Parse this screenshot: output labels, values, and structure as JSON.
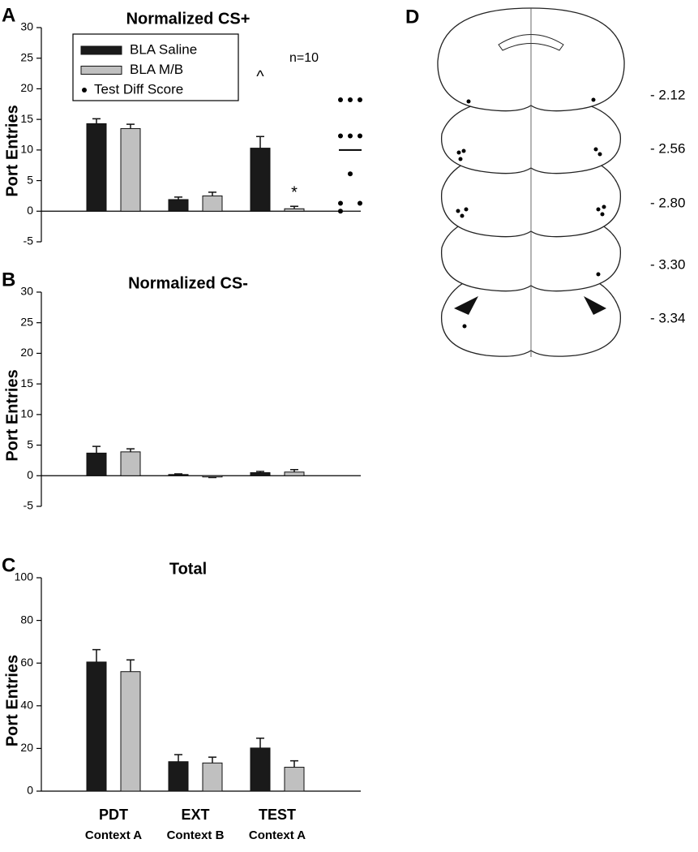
{
  "chart_data": [
    {
      "type": "bar",
      "panel": "A",
      "title": "Normalized CS+",
      "ylabel": "Port Entries",
      "ylim": [
        -5,
        30
      ],
      "yticks": [
        -5,
        0,
        5,
        10,
        15,
        20,
        25,
        30
      ],
      "legend": "upper left",
      "annotations": [
        "^",
        "*",
        "n=10"
      ],
      "series": [
        {
          "name": "BLA Saline",
          "color": "#1a1a1a",
          "values": [
            14.3,
            1.9,
            10.3
          ],
          "errors": [
            0.8,
            0.4,
            1.9
          ]
        },
        {
          "name": "BLA M/B",
          "color": "#c0c0c0",
          "values": [
            13.5,
            2.5,
            0.4
          ],
          "errors": [
            0.7,
            0.6,
            0.4
          ]
        },
        {
          "name": "Test Diff Score",
          "color": "#000000",
          "marker": "dot",
          "values": [
            18.2,
            18.2,
            18.2,
            12.3,
            12.3,
            12.3,
            6.1,
            1.3,
            1.3,
            0
          ],
          "mean": 10
        }
      ]
    },
    {
      "type": "bar",
      "panel": "B",
      "title": "Normalized CS-",
      "ylabel": "Port Entries",
      "ylim": [
        -5,
        30
      ],
      "yticks": [
        -5,
        0,
        5,
        10,
        15,
        20,
        25,
        30
      ],
      "series": [
        {
          "name": "BLA Saline",
          "color": "#1a1a1a",
          "values": [
            3.7,
            0.2,
            0.5
          ],
          "errors": [
            1.1,
            0.1,
            0.2
          ]
        },
        {
          "name": "BLA M/B",
          "color": "#c0c0c0",
          "values": [
            3.9,
            -0.2,
            0.6
          ],
          "errors": [
            0.5,
            0.1,
            0.4
          ]
        }
      ]
    },
    {
      "type": "bar",
      "panel": "C",
      "title": "Total",
      "ylabel": "Port Entries",
      "categories": [
        "PDT",
        "EXT",
        "TEST"
      ],
      "category_sublabels": [
        "Context A",
        "Context B",
        "Context A"
      ],
      "ylim": [
        0,
        100
      ],
      "yticks": [
        0,
        20,
        40,
        60,
        80,
        100
      ],
      "series": [
        {
          "name": "BLA Saline",
          "color": "#1a1a1a",
          "values": [
            60.5,
            13.8,
            20.2
          ],
          "errors": [
            5.8,
            3.3,
            4.6
          ]
        },
        {
          "name": "BLA M/B",
          "color": "#c0c0c0",
          "values": [
            56,
            13.2,
            11.2
          ],
          "errors": [
            5.5,
            2.7,
            3
          ]
        }
      ]
    }
  ],
  "panel_d": {
    "label": "D",
    "levels": [
      "- 2.12",
      "- 2.56",
      "- 2.80",
      "- 3.30",
      "- 3.34"
    ]
  }
}
